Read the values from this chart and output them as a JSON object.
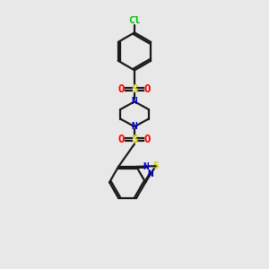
{
  "background_color": "#e8e8e8",
  "bond_color": "#1a1a1a",
  "N_color": "#0000cc",
  "S_color": "#cccc00",
  "O_color": "#ff0000",
  "Cl_color": "#00bb00",
  "figsize": [
    3.0,
    3.0
  ],
  "dpi": 100,
  "xlim": [
    0,
    10
  ],
  "ylim": [
    0,
    17
  ]
}
